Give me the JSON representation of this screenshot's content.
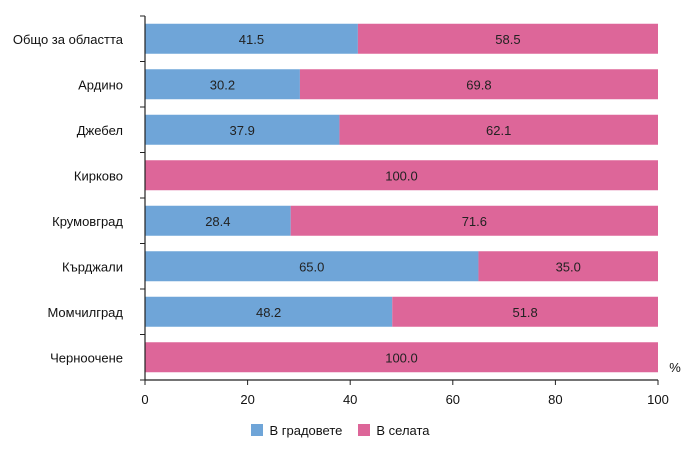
{
  "chart_data": {
    "type": "bar",
    "orientation": "horizontal",
    "stacked": true,
    "categories": [
      "Общо за областта",
      "Ардино",
      "Джебел",
      "Кирково",
      "Крумовград",
      "Кърджали",
      "Момчилград",
      "Черноочене"
    ],
    "series": [
      {
        "name": "В градовете",
        "color": "#6fa5d8",
        "values": [
          41.5,
          30.2,
          37.9,
          0,
          28.4,
          65.0,
          48.2,
          0
        ]
      },
      {
        "name": "В селата",
        "color": "#dd6699",
        "values": [
          58.5,
          69.8,
          62.1,
          100.0,
          71.6,
          35.0,
          51.8,
          100.0
        ]
      }
    ],
    "data_labels": [
      [
        "41.5",
        "30.2",
        "37.9",
        "",
        "28.4",
        "65.0",
        "48.2",
        ""
      ],
      [
        "58.5",
        "69.8",
        "62.1",
        "100.0",
        "71.6",
        "35.0",
        "51.8",
        "100.0"
      ]
    ],
    "xlim": [
      0,
      100
    ],
    "xticks": [
      "0",
      "20",
      "40",
      "60",
      "80",
      "100"
    ],
    "unit_label": "%",
    "grid": false,
    "legend_position": "bottom"
  }
}
